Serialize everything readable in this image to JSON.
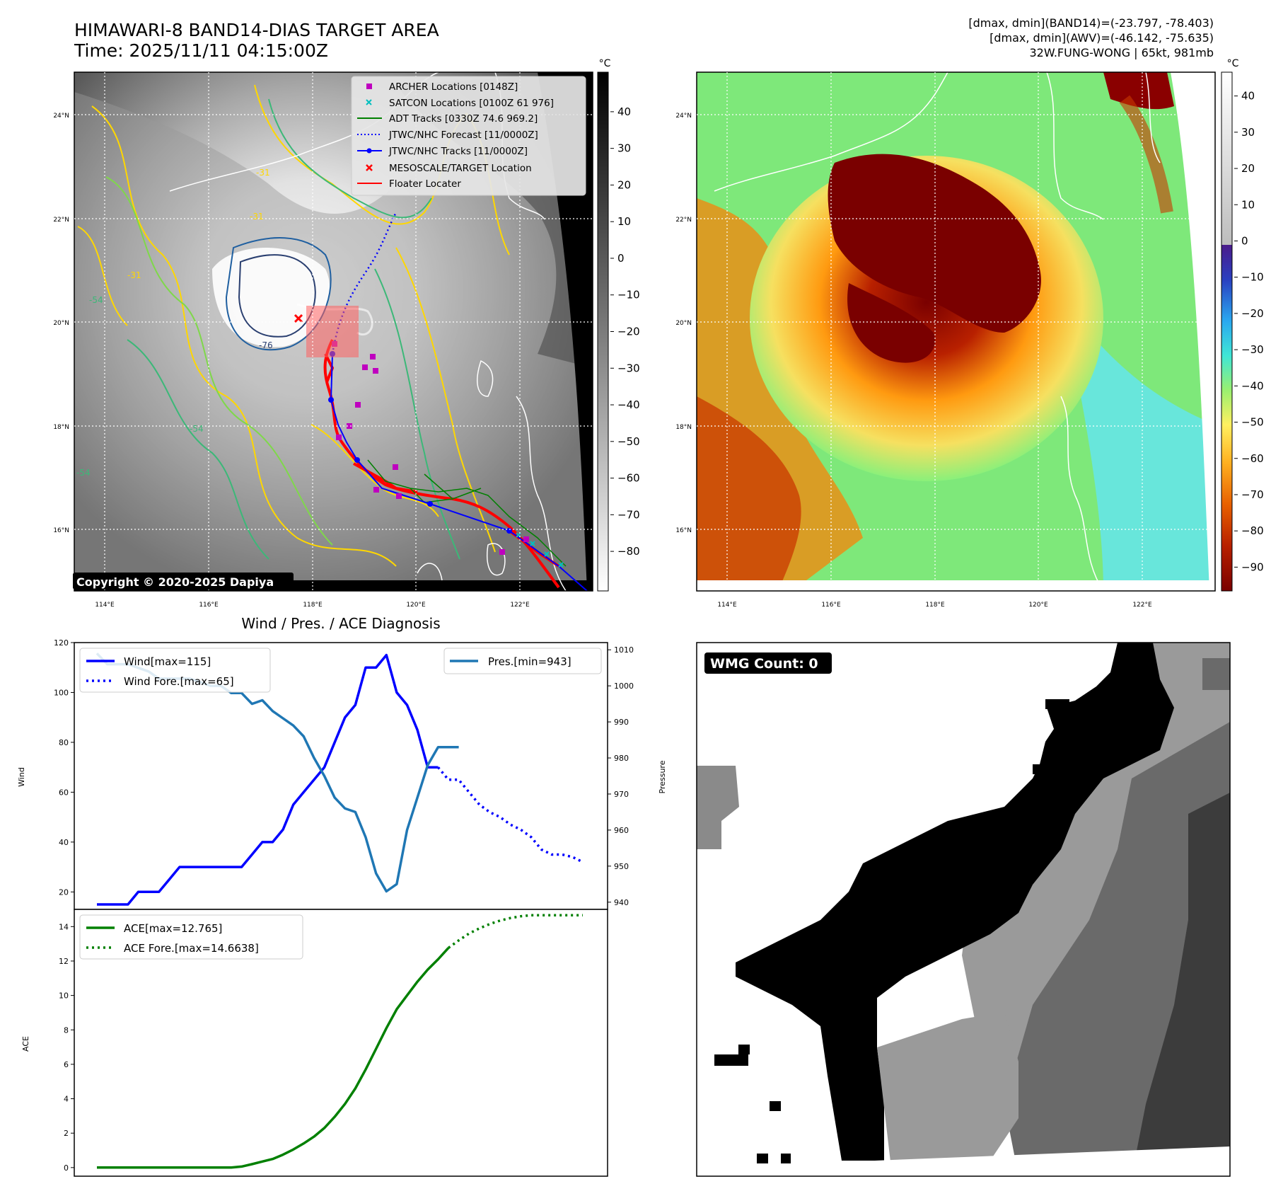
{
  "header": {
    "title_line1": "HIMAWARI-8 BAND14-DIAS TARGET AREA",
    "title_line2": "Time: 2025/11/11 04:15:00Z",
    "info_line1": "[dmax, dmin](BAND14)=(-23.797, -78.403)",
    "info_line2": "[dmax, dmin](AWV)=(-46.142, -75.635)",
    "info_line3": "32W.FUNG-WONG | 65kt, 981mb"
  },
  "map_axes": {
    "lon_ticks": [
      "114°E",
      "116°E",
      "118°E",
      "120°E",
      "122°E"
    ],
    "lat_ticks": [
      "24°N",
      "22°N",
      "20°N",
      "18°N",
      "16°N"
    ]
  },
  "band14_panel": {
    "copyright": "Copyright © 2020-2025 Dapiya",
    "colorbar_unit": "°C",
    "colorbar_ticks": [
      "40",
      "30",
      "20",
      "10",
      "0",
      "−10",
      "−20",
      "−30",
      "−40",
      "−50",
      "−60",
      "−70",
      "−80"
    ],
    "contour_labels": [
      "-54",
      "-54",
      "-54",
      "-31",
      "-31",
      "-31",
      "-76"
    ],
    "legend": [
      {
        "label": "ARCHER Locations [0148Z]",
        "color": "#bf00bf",
        "marker": "square"
      },
      {
        "label": "SATCON Locations [0100Z 61 976]",
        "color": "#00bfbf",
        "marker": "x"
      },
      {
        "label": "ADT Tracks [0330Z 74.6 969.2]",
        "color": "#008000",
        "marker": "line"
      },
      {
        "label": "JTWC/NHC Forecast [11/0000Z]",
        "color": "#0000ff",
        "marker": "dotted"
      },
      {
        "label": "JTWC/NHC Tracks [11/0000Z]",
        "color": "#0000ff",
        "marker": "line-dot"
      },
      {
        "label": "MESOSCALE/TARGET Location",
        "color": "#ff0000",
        "marker": "x"
      },
      {
        "label": "Floater Locater",
        "color": "#ff0000",
        "marker": "line"
      }
    ]
  },
  "awv_panel": {
    "colorbar_unit": "°C",
    "colorbar_ticks": [
      "40",
      "30",
      "20",
      "10",
      "0",
      "−10",
      "−20",
      "−30",
      "−40",
      "−50",
      "−60",
      "−70",
      "−80",
      "−90"
    ]
  },
  "wmg_panel": {
    "badge": "WMG Count: 0"
  },
  "colors": {
    "wind": "#0000ff",
    "pressure": "#1f77b4",
    "ace": "#008000"
  },
  "chart_data": [
    {
      "type": "line",
      "title": "Wind / Pres. / ACE Diagnosis",
      "ylabel": "Wind",
      "y2label": "Pressure",
      "ylim": [
        13,
        120
      ],
      "y2lim": [
        938,
        1012
      ],
      "yticks": [
        20,
        40,
        60,
        80,
        100,
        120
      ],
      "y2ticks": [
        940,
        950,
        960,
        970,
        980,
        990,
        1000,
        1010
      ],
      "x": [
        0,
        1,
        2,
        3,
        4,
        5,
        6,
        7,
        8,
        9,
        10,
        11,
        12,
        13,
        14,
        15,
        16,
        17,
        18,
        19,
        20,
        21,
        22,
        23,
        24,
        25,
        26,
        27,
        28,
        29,
        30,
        31,
        32,
        33,
        34,
        35,
        36,
        37,
        38,
        39,
        40,
        41,
        42,
        43,
        44,
        45,
        46,
        47
      ],
      "series": [
        {
          "name": "Wind[max=115]",
          "axis": "left",
          "style": "solid",
          "x": [
            0,
            1,
            2,
            3,
            4,
            5,
            6,
            7,
            8,
            9,
            10,
            11,
            12,
            13,
            14,
            15,
            16,
            17,
            18,
            19,
            20,
            21,
            22,
            23,
            24,
            25,
            26,
            27,
            28,
            29,
            30,
            31,
            32,
            33
          ],
          "values": [
            15,
            15,
            15,
            15,
            20,
            20,
            20,
            25,
            30,
            30,
            30,
            30,
            30,
            30,
            30,
            35,
            40,
            40,
            45,
            55,
            60,
            65,
            70,
            80,
            90,
            95,
            110,
            110,
            115,
            100,
            95,
            85,
            70,
            70
          ]
        },
        {
          "name": "Wind Fore.[max=65]",
          "axis": "left",
          "style": "dotted",
          "x": [
            33,
            34,
            35,
            36,
            37,
            38,
            39,
            40,
            41,
            42,
            43,
            44,
            45,
            46,
            47
          ],
          "values": [
            70,
            65,
            65,
            60,
            55,
            52,
            50,
            47,
            45,
            42,
            37,
            35,
            35,
            34,
            32
          ]
        },
        {
          "name": "Pres.[min=943]",
          "axis": "right",
          "style": "solid",
          "x": [
            0,
            1,
            2,
            3,
            4,
            5,
            6,
            7,
            8,
            9,
            10,
            11,
            12,
            13,
            14,
            15,
            16,
            17,
            18,
            19,
            20,
            21,
            22,
            23,
            24,
            25,
            26,
            27,
            28,
            29,
            30,
            31,
            32,
            33,
            34,
            35
          ],
          "values": [
            1009,
            1006,
            1006,
            1006,
            1005,
            1004,
            1002,
            1002,
            1002,
            1002,
            1001,
            1000,
            1000,
            998,
            998,
            995,
            996,
            993,
            991,
            989,
            986,
            980,
            975,
            969,
            966,
            965,
            958,
            948,
            943,
            945,
            960,
            969,
            978,
            983,
            983,
            983
          ]
        }
      ],
      "legend_placement": "top-left / top-right"
    },
    {
      "type": "line",
      "ylabel": "ACE",
      "ylim": [
        -0.5,
        15
      ],
      "yticks": [
        0,
        2,
        4,
        6,
        8,
        10,
        12,
        14
      ],
      "series": [
        {
          "name": "ACE[max=12.765]",
          "style": "solid",
          "x": [
            0,
            1,
            2,
            3,
            4,
            5,
            6,
            7,
            8,
            9,
            10,
            11,
            12,
            13,
            14,
            15,
            16,
            17,
            18,
            19,
            20,
            21,
            22,
            23,
            24,
            25,
            26,
            27,
            28,
            29,
            30,
            31,
            32,
            33,
            34
          ],
          "values": [
            0,
            0,
            0,
            0,
            0,
            0,
            0,
            0,
            0,
            0,
            0,
            0,
            0,
            0,
            0.06,
            0.2,
            0.35,
            0.5,
            0.75,
            1.05,
            1.4,
            1.8,
            2.3,
            2.95,
            3.7,
            4.6,
            5.7,
            6.9,
            8.1,
            9.2,
            10.0,
            10.8,
            11.5,
            12.1,
            12.765
          ]
        },
        {
          "name": "ACE Fore.[max=14.6638]",
          "style": "dotted",
          "x": [
            34,
            35,
            36,
            37,
            38,
            39,
            40,
            41,
            42,
            43,
            44,
            45,
            46,
            47
          ],
          "values": [
            12.765,
            13.2,
            13.6,
            13.9,
            14.15,
            14.35,
            14.5,
            14.6,
            14.66,
            14.66,
            14.66,
            14.66,
            14.66,
            14.66
          ]
        }
      ],
      "legend_placement": "top-left"
    }
  ]
}
